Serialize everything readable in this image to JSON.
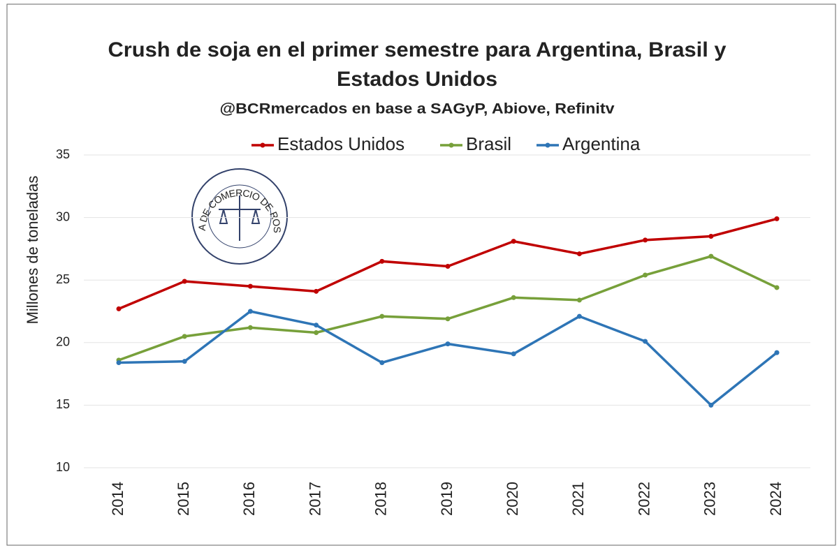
{
  "chart_data": {
    "type": "line",
    "title": [
      "Crush de soja en el primer semestre para Argentina, Brasil y",
      "Estados Unidos"
    ],
    "subtitle": "@BCRmercados en base a SAGyP, Abiove, Refinitv",
    "y_label": "Millones de toneladas",
    "logo_text": "BOLSA DE COMERCIO DE ROSARIO",
    "categories": [
      "2014",
      "2015",
      "2016",
      "2017",
      "2018",
      "2019",
      "2020",
      "2021",
      "2022",
      "2023",
      "2024"
    ],
    "series": [
      {
        "name": "Estados Unidos",
        "color": "#c00000",
        "values": [
          22.7,
          24.9,
          24.5,
          24.1,
          26.5,
          26.1,
          28.1,
          27.1,
          28.2,
          28.5,
          29.9
        ]
      },
      {
        "name": "Brasil",
        "color": "#77a03a",
        "values": [
          18.6,
          20.5,
          21.2,
          20.8,
          22.1,
          21.9,
          23.6,
          23.4,
          25.4,
          26.9,
          24.4
        ]
      },
      {
        "name": "Argentina",
        "color": "#2e75b6",
        "values": [
          18.4,
          18.5,
          22.5,
          21.4,
          18.4,
          19.9,
          19.1,
          22.1,
          20.1,
          15.0,
          19.2
        ]
      }
    ],
    "ylim": [
      10,
      35
    ],
    "yticks": [
      10,
      15,
      20,
      25,
      30,
      35
    ],
    "grid": true,
    "legend": "top"
  }
}
